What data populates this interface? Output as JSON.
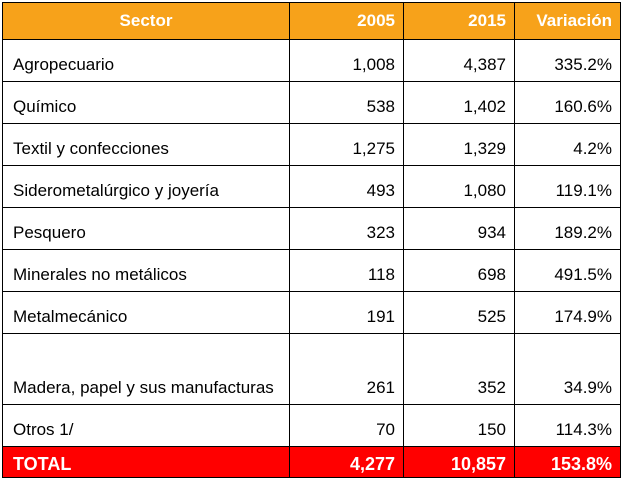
{
  "table": {
    "header": {
      "sector": "Sector",
      "y2005": "2005",
      "y2015": "2015",
      "variation": "Variación"
    },
    "rows": [
      {
        "sector": "Agropecuario",
        "y2005": "1,008",
        "y2015": "4,387",
        "variation": "335.2%"
      },
      {
        "sector": "Químico",
        "y2005": "538",
        "y2015": "1,402",
        "variation": "160.6%"
      },
      {
        "sector": "Textil y confecciones",
        "y2005": "1,275",
        "y2015": "1,329",
        "variation": "4.2%"
      },
      {
        "sector": "Siderometalúrgico y joyería",
        "y2005": "493",
        "y2015": "1,080",
        "variation": "119.1%"
      },
      {
        "sector": "Pesquero",
        "y2005": "323",
        "y2015": "934",
        "variation": "189.2%"
      },
      {
        "sector": "Minerales no metálicos",
        "y2005": "118",
        "y2015": "698",
        "variation": "491.5%"
      },
      {
        "sector": "Metalmecánico",
        "y2005": "191",
        "y2015": "525",
        "variation": "174.9%"
      },
      {
        "sector": "Madera, papel y sus manufacturas",
        "y2005": "261",
        "y2015": "352",
        "variation": "34.9%"
      },
      {
        "sector": "Otros 1/",
        "y2005": "70",
        "y2015": "150",
        "variation": "114.3%"
      }
    ],
    "total": {
      "sector": "TOTAL",
      "y2005": "4,277",
      "y2015": "10,857",
      "variation": "153.8%"
    }
  },
  "colors": {
    "header_bg": "#f7a21a",
    "total_bg": "#ff0000",
    "header_text": "#ffffff"
  }
}
